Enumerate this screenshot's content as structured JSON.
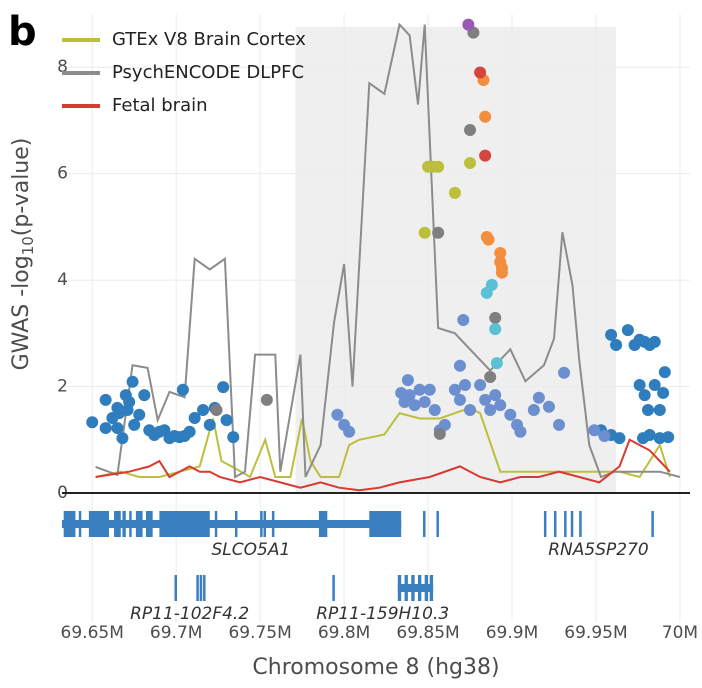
{
  "chart_data": {
    "type": "locus",
    "panel_label": "b",
    "y_label": "GWAS -log",
    "y_label_sub": "10",
    "y_label_end": "(p-value)",
    "x_label": "Chromosome 8 (hg38)",
    "xlim": [
      69.632,
      70.006
    ],
    "ylim": [
      0,
      9
    ],
    "xticks": [
      {
        "value": 69.65,
        "label": "69.65M"
      },
      {
        "value": 69.7,
        "label": "69.7M"
      },
      {
        "value": 69.75,
        "label": "69.75M"
      },
      {
        "value": 69.8,
        "label": "69.8M"
      },
      {
        "value": 69.85,
        "label": "69.85M"
      },
      {
        "value": 69.9,
        "label": "69.9M"
      },
      {
        "value": 69.95,
        "label": "69.95M"
      },
      {
        "value": 70,
        "label": "70M"
      }
    ],
    "yticks": [
      0,
      2,
      4,
      6,
      8
    ],
    "grid": true,
    "legend": "top-left",
    "highlight": [
      69.771,
      69.962
    ],
    "series": [
      {
        "name": "GTEx V8 Brain Cortex",
        "color": "#bcbf3c",
        "x": [
          69.652,
          69.667,
          69.678,
          69.69,
          69.702,
          69.714,
          69.722,
          69.727,
          69.733,
          69.744,
          69.753,
          69.759,
          69.768,
          69.775,
          69.78,
          69.786,
          69.797,
          69.803,
          69.809,
          69.824,
          69.833,
          69.845,
          69.857,
          69.875,
          69.881,
          69.893,
          69.905,
          69.916,
          69.928,
          69.946,
          69.964,
          69.976,
          69.988,
          69.994
        ],
        "values": [
          0.3,
          0.4,
          0.3,
          0.3,
          0.4,
          0.5,
          1.4,
          0.6,
          0.5,
          0.3,
          1.0,
          0.3,
          0.3,
          1.4,
          0.6,
          0.3,
          0.3,
          0.9,
          1.0,
          1.1,
          1.5,
          1.4,
          1.4,
          1.6,
          1.5,
          0.4,
          0.4,
          0.4,
          0.4,
          0.4,
          0.4,
          0.3,
          0.9,
          0.3
        ]
      },
      {
        "name": "PsychENCODE DLPFC",
        "color": "#8c8c8c",
        "x": [
          69.652,
          69.665,
          69.674,
          69.683,
          69.689,
          69.696,
          69.705,
          69.711,
          69.72,
          69.729,
          69.735,
          69.741,
          69.747,
          69.759,
          69.762,
          69.774,
          69.777,
          69.786,
          69.794,
          69.8,
          69.805,
          69.815,
          69.824,
          69.833,
          69.839,
          69.844,
          69.848,
          69.856,
          69.866,
          69.875,
          69.887,
          69.899,
          69.908,
          69.919,
          69.925,
          69.93,
          69.936,
          69.94,
          69.946,
          69.953,
          69.961,
          69.976,
          69.988,
          70.0
        ],
        "values": [
          0.49,
          0.34,
          2.4,
          2.35,
          1.37,
          1.9,
          1.8,
          4.4,
          4.2,
          4.4,
          0.3,
          0.4,
          2.6,
          2.6,
          0.4,
          2.6,
          0.3,
          0.9,
          3.2,
          4.3,
          2.0,
          7.7,
          7.5,
          8.8,
          8.6,
          7.3,
          8.8,
          3.1,
          3.0,
          2.7,
          2.3,
          2.7,
          2.1,
          2.4,
          2.9,
          4.9,
          3.9,
          2.5,
          0.9,
          0.3,
          0.4,
          0.4,
          0.4,
          0.3
        ]
      },
      {
        "name": "Fetal brain",
        "color": "#d73a2f",
        "x": [
          69.652,
          69.672,
          69.684,
          69.69,
          69.696,
          69.702,
          69.708,
          69.714,
          69.72,
          69.726,
          69.738,
          69.75,
          69.762,
          69.774,
          69.786,
          69.797,
          69.809,
          69.821,
          69.833,
          69.851,
          69.869,
          69.881,
          69.893,
          69.905,
          69.916,
          69.928,
          69.94,
          69.952,
          69.964,
          69.97,
          69.982,
          69.994
        ],
        "values": [
          0.3,
          0.4,
          0.5,
          0.6,
          0.3,
          0.4,
          0.5,
          0.4,
          0.4,
          0.3,
          0.2,
          0.3,
          0.2,
          0.1,
          0.2,
          0.1,
          0.05,
          0.1,
          0.2,
          0.3,
          0.5,
          0.3,
          0.2,
          0.3,
          0.3,
          0.4,
          0.3,
          0.2,
          0.5,
          1.0,
          0.8,
          0.4
        ]
      }
    ],
    "points": [
      {
        "color": "#2f7dbd",
        "x": [
          69.65,
          69.658,
          69.662,
          69.665,
          69.665,
          69.668,
          69.67,
          69.671,
          69.672,
          69.674,
          69.675,
          69.678,
          69.681,
          69.684,
          69.687,
          69.69,
          69.693,
          69.696,
          69.699,
          69.702,
          69.704,
          69.705,
          69.708,
          69.711,
          69.716,
          69.72,
          69.723,
          69.728,
          69.73,
          69.734,
          69.658,
          69.666,
          69.959,
          69.962,
          69.969,
          69.973,
          69.976,
          69.979,
          69.982,
          69.976,
          69.979,
          69.981,
          69.985,
          69.988,
          69.991,
          69.978,
          69.982,
          69.988,
          69.993,
          69.99,
          69.985,
          69.953,
          69.959,
          69.964
        ],
        "values": [
          1.33,
          1.75,
          1.41,
          1.6,
          1.22,
          1.03,
          1.84,
          1.56,
          1.71,
          2.09,
          1.28,
          1.47,
          1.84,
          1.18,
          1.09,
          1.15,
          1.18,
          1.03,
          1.07,
          1.05,
          1.94,
          1.07,
          1.15,
          1.41,
          1.56,
          1.28,
          1.6,
          1.99,
          1.37,
          1.05,
          1.22,
          1.5,
          2.97,
          2.78,
          3.06,
          2.78,
          2.88,
          2.84,
          2.78,
          2.03,
          1.84,
          1.56,
          2.03,
          1.56,
          2.27,
          1.03,
          1.09,
          1.03,
          1.05,
          1.88,
          2.84,
          1.18,
          1.09,
          1.03
        ]
      },
      {
        "color": "#6b8fcf",
        "x": [
          69.796,
          69.8,
          69.803,
          69.834,
          69.836,
          69.839,
          69.842,
          69.845,
          69.848,
          69.851,
          69.854,
          69.857,
          69.86,
          69.866,
          69.869,
          69.872,
          69.875,
          69.881,
          69.884,
          69.887,
          69.89,
          69.893,
          69.899,
          69.903,
          69.905,
          69.913,
          69.916,
          69.922,
          69.928,
          69.931,
          69.949,
          69.955,
          69.871,
          69.869,
          69.838
        ],
        "values": [
          1.47,
          1.28,
          1.15,
          1.88,
          1.71,
          1.84,
          1.65,
          1.94,
          1.71,
          1.94,
          1.56,
          1.18,
          1.28,
          1.94,
          1.75,
          2.03,
          1.56,
          2.03,
          1.75,
          1.56,
          1.84,
          1.65,
          1.47,
          1.28,
          1.15,
          1.56,
          1.79,
          1.62,
          1.28,
          2.26,
          1.18,
          1.07,
          3.25,
          2.39,
          2.12
        ]
      },
      {
        "color": "#7f7f7f",
        "x": [
          69.724,
          69.754,
          69.856,
          69.857,
          69.877,
          69.875,
          69.887,
          69.89
        ],
        "values": [
          1.56,
          1.75,
          4.89,
          1.11,
          8.65,
          6.82,
          2.18,
          3.29
        ]
      },
      {
        "color": "#bcbf3c",
        "x": [
          69.85,
          69.853,
          69.856,
          69.866,
          69.875,
          69.848
        ],
        "values": [
          6.13,
          6.13,
          6.13,
          5.64,
          6.2,
          4.89
        ]
      },
      {
        "color": "#5bc0d6",
        "x": [
          69.885,
          69.888,
          69.89,
          69.891
        ],
        "values": [
          3.76,
          3.91,
          3.08,
          2.44
        ]
      },
      {
        "color": "#f28e3c",
        "x": [
          69.883,
          69.884,
          69.885,
          69.886,
          69.893,
          69.893,
          69.894,
          69.894
        ],
        "values": [
          7.76,
          7.07,
          4.81,
          4.76,
          4.51,
          4.34,
          4.23,
          4.14
        ]
      },
      {
        "color": "#d6453d",
        "x": [
          69.881,
          69.884
        ],
        "values": [
          7.9,
          6.34
        ]
      },
      {
        "color": "#9b59b6",
        "x": [
          69.874
        ],
        "values": [
          8.8
        ]
      }
    ],
    "gene_color": "#3a7fc0",
    "tracks": [
      [
        {
          "name": "SLCO5A1",
          "span": [
            69.632,
            69.834
          ],
          "exons": [
            [
              69.633,
              69.64
            ],
            [
              69.642,
              69.643
            ],
            [
              69.648,
              69.66
            ],
            [
              69.663,
              69.667
            ],
            [
              69.668,
              69.67
            ],
            [
              69.672,
              69.673
            ],
            [
              69.676,
              69.68
            ],
            [
              69.682,
              69.686
            ],
            [
              69.69,
              69.72
            ],
            [
              69.723,
              69.724
            ],
            [
              69.735,
              69.736
            ],
            [
              69.75,
              69.751
            ],
            [
              69.752,
              69.753
            ],
            [
              69.757,
              69.758
            ],
            [
              69.785,
              69.79
            ],
            [
              69.815,
              69.834
            ],
            [
              69.847,
              69.848
            ],
            [
              69.855,
              69.856
            ]
          ]
        },
        {
          "name": "RNA5SP270",
          "exons": [
            [
              69.919,
              69.92
            ],
            [
              69.925,
              69.926
            ],
            [
              69.931,
              69.932
            ],
            [
              69.935,
              69.936
            ],
            [
              69.94,
              69.941
            ],
            [
              69.983,
              69.984
            ]
          ]
        }
      ],
      [
        {
          "name": "RP11-102F4.2",
          "exons": [
            [
              69.699,
              69.7
            ],
            [
              69.712,
              69.713
            ],
            [
              69.714,
              69.715
            ],
            [
              69.716,
              69.717
            ]
          ]
        },
        {
          "name": "RP11-159H10.3",
          "span": [
            69.832,
            69.853
          ],
          "exons": [
            [
              69.793,
              69.794
            ],
            [
              69.832,
              69.834
            ],
            [
              69.836,
              69.838
            ],
            [
              69.84,
              69.842
            ],
            [
              69.844,
              69.846
            ],
            [
              69.848,
              69.85
            ],
            [
              69.851,
              69.853
            ]
          ]
        }
      ]
    ]
  }
}
